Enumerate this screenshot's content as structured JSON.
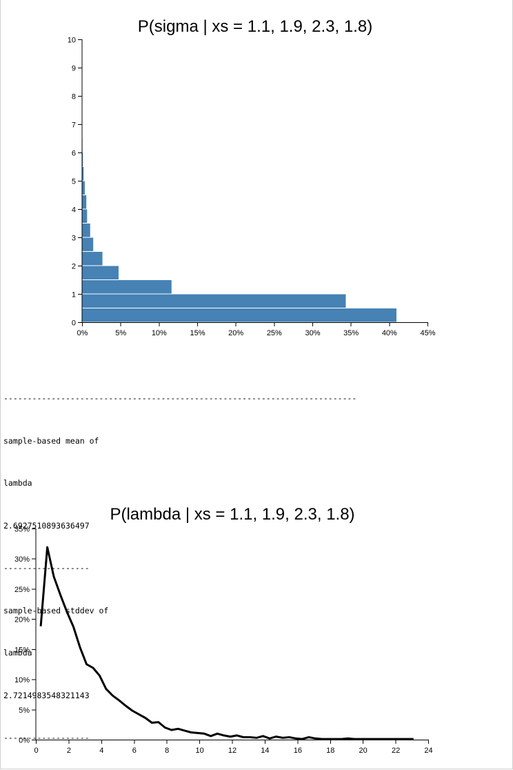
{
  "chart_data": [
    {
      "type": "bar",
      "orientation": "horizontal",
      "title": "P(sigma | xs = 1.1, 1.9, 2.3, 1.8)",
      "xlabel": "",
      "ylabel": "",
      "xlim": [
        0,
        0.45
      ],
      "ylim": [
        0,
        10
      ],
      "xticks": [
        "0%",
        "5%",
        "10%",
        "15%",
        "20%",
        "25%",
        "30%",
        "35%",
        "40%",
        "45%"
      ],
      "yticks": [
        "0",
        "1",
        "2",
        "3",
        "4",
        "5",
        "6",
        "7",
        "8",
        "9",
        "10"
      ],
      "bin_width": 0.5,
      "bins": [
        0,
        0.5,
        1.0,
        1.5,
        2.0,
        2.5,
        3.0,
        3.5,
        4.0,
        4.5,
        5.0,
        5.5,
        6.0
      ],
      "values": [
        0.41,
        0.344,
        0.117,
        0.048,
        0.027,
        0.015,
        0.011,
        0.007,
        0.006,
        0.004,
        0.0025,
        0.0015,
        0.001
      ],
      "color": "#4682b4"
    },
    {
      "type": "line",
      "title": "P(lambda | xs = 1.1, 1.9, 2.3, 1.8)",
      "xlabel": "",
      "ylabel": "",
      "xlim": [
        0,
        24
      ],
      "ylim": [
        0,
        0.35
      ],
      "xticks": [
        "0",
        "2",
        "4",
        "6",
        "8",
        "10",
        "12",
        "14",
        "16",
        "18",
        "20",
        "22",
        "24"
      ],
      "yticks": [
        "0%",
        "5%",
        "10%",
        "15%",
        "20%",
        "25%",
        "30%",
        "35%"
      ],
      "x": [
        0.3,
        0.7,
        1.1,
        1.5,
        1.9,
        2.3,
        2.7,
        3.1,
        3.5,
        3.9,
        4.3,
        4.7,
        5.1,
        5.5,
        5.9,
        6.3,
        6.7,
        7.1,
        7.5,
        7.9,
        8.3,
        8.7,
        9.1,
        9.5,
        9.9,
        10.3,
        10.7,
        11.1,
        11.5,
        11.9,
        12.3,
        12.7,
        13.1,
        13.5,
        13.9,
        14.3,
        14.7,
        15.1,
        15.5,
        15.9,
        16.3,
        16.7,
        17.1,
        17.5,
        17.9,
        18.3,
        18.7,
        19.1,
        19.5,
        19.9,
        20.3,
        20.7,
        21.1,
        21.5,
        21.9,
        22.3,
        22.7,
        23.1
      ],
      "y": [
        0.188,
        0.319,
        0.27,
        0.24,
        0.212,
        0.187,
        0.153,
        0.125,
        0.119,
        0.106,
        0.084,
        0.073,
        0.065,
        0.056,
        0.048,
        0.042,
        0.036,
        0.028,
        0.029,
        0.02,
        0.016,
        0.018,
        0.015,
        0.012,
        0.011,
        0.01,
        0.006,
        0.01,
        0.007,
        0.005,
        0.007,
        0.004,
        0.004,
        0.003,
        0.006,
        0.002,
        0.005,
        0.003,
        0.004,
        0.002,
        0.001,
        0.004,
        0.002,
        0.001,
        0.001,
        0.001,
        0.001,
        0.002,
        0.001,
        0.001,
        0.001,
        0.001,
        0.001,
        0.001,
        0.001,
        0.001,
        0.001,
        0.001
      ],
      "color": "#000000"
    }
  ],
  "console": {
    "lines": [
      "--------------------------------------------------------------------------",
      "sample-based mean of",
      "lambda",
      "2.6927510893636497",
      "------------------",
      "sample-based stddev of",
      "lambda",
      "2.7214983548321143",
      "------------------"
    ]
  }
}
